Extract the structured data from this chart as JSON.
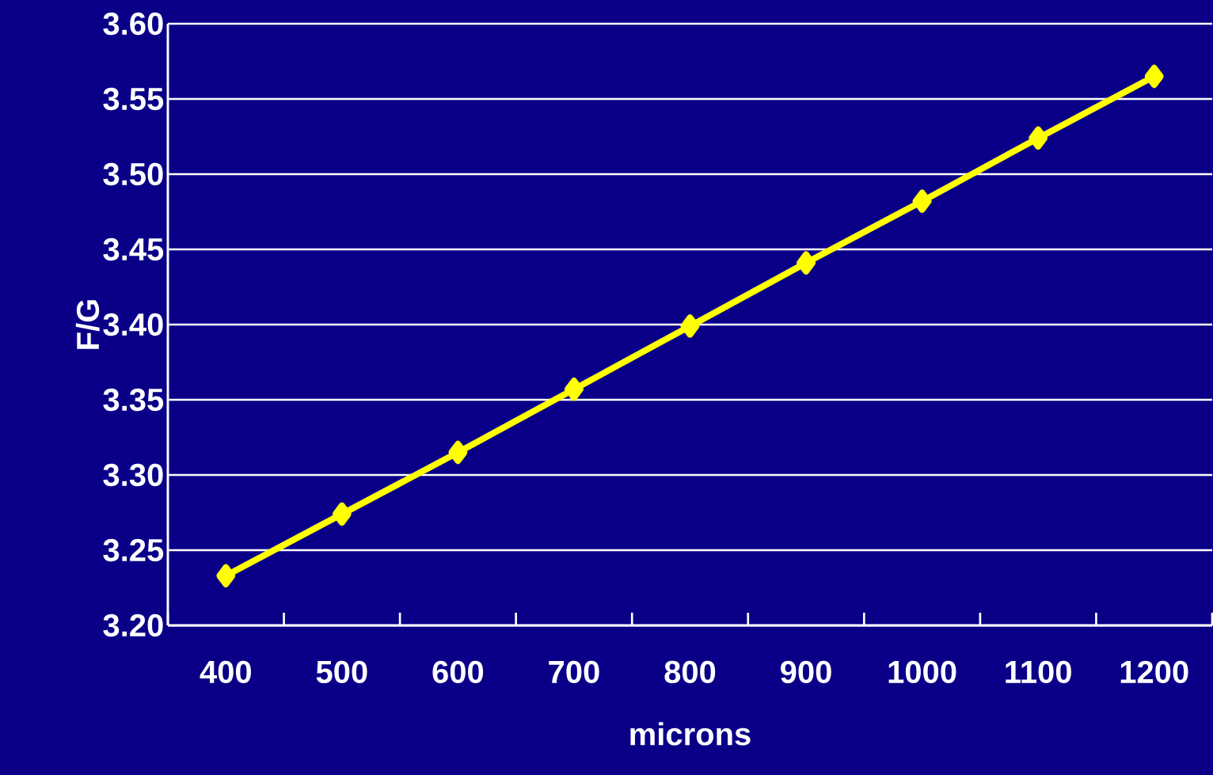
{
  "chart_data": {
    "type": "line",
    "xlabel": "microns",
    "ylabel": "F/G",
    "categories": [
      "400",
      "500",
      "600",
      "700",
      "800",
      "900",
      "1000",
      "1100",
      "1200"
    ],
    "values": [
      3.233,
      3.274,
      3.315,
      3.357,
      3.399,
      3.441,
      3.482,
      3.524,
      3.565
    ],
    "color": "#ffff00",
    "marker": "diamond",
    "line_style": "solid",
    "grid": "y",
    "ylim": [
      3.2,
      3.6
    ],
    "yticks": [
      {
        "value": 3.2,
        "label": "3.20"
      },
      {
        "value": 3.25,
        "label": "3.25"
      },
      {
        "value": 3.3,
        "label": "3.30"
      },
      {
        "value": 3.35,
        "label": "3.35"
      },
      {
        "value": 3.4,
        "label": "3.40"
      },
      {
        "value": 3.45,
        "label": "3.45"
      },
      {
        "value": 3.5,
        "label": "3.50"
      },
      {
        "value": 3.55,
        "label": "3.55"
      },
      {
        "value": 3.6,
        "label": "3.60"
      }
    ]
  }
}
